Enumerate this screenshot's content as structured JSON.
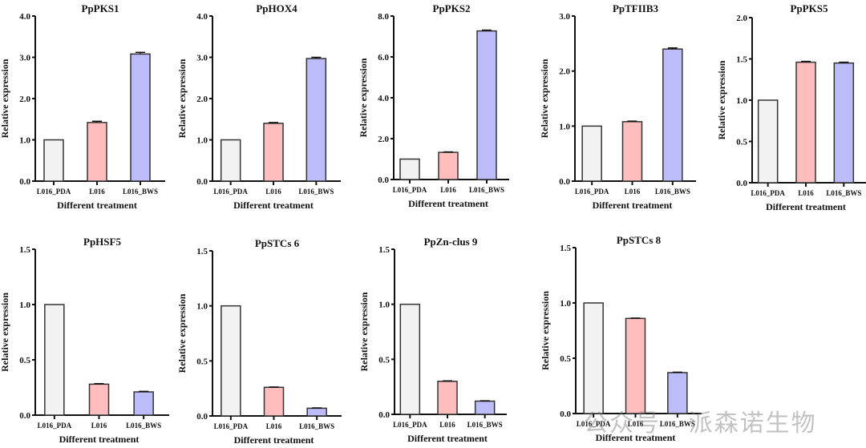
{
  "figure": {
    "watermark": "公众号 · 派森诺生物"
  },
  "chart_data": [
    {
      "type": "bar",
      "title": "PpPKS1",
      "xlabel": "Different treatment",
      "ylabel": "Relative expression",
      "categories": [
        "L016_PDA",
        "L016",
        "L016_BWS"
      ],
      "values": [
        1.0,
        1.42,
        3.08
      ],
      "errors": [
        0.0,
        0.03,
        0.04
      ],
      "ylim": [
        0,
        4.0
      ],
      "yticks": [
        "0.0",
        "1.0",
        "2.0",
        "3.0",
        "4.0"
      ],
      "colors": [
        "#f2f2f2",
        "#ffbdbd",
        "#bcbcfa"
      ],
      "grid": false
    },
    {
      "type": "bar",
      "title": "PpHOX4",
      "xlabel": "Different treatment",
      "ylabel": "Relative expression",
      "categories": [
        "L016_PDA",
        "L016",
        "L016_BWS"
      ],
      "values": [
        1.0,
        1.4,
        2.97
      ],
      "errors": [
        0.0,
        0.02,
        0.03
      ],
      "ylim": [
        0,
        4.0
      ],
      "yticks": [
        "0.0",
        "1.0",
        "2.0",
        "3.0",
        "4.0"
      ],
      "colors": [
        "#f2f2f2",
        "#ffbdbd",
        "#bcbcfa"
      ],
      "grid": false
    },
    {
      "type": "bar",
      "title": "PpPKS2",
      "xlabel": "Different treatment",
      "ylabel": "Relative expression",
      "categories": [
        "L016_PDA",
        "L016",
        "L016_BWS"
      ],
      "values": [
        1.0,
        1.33,
        7.27
      ],
      "errors": [
        0.0,
        0.02,
        0.04
      ],
      "ylim": [
        0,
        8.0
      ],
      "yticks": [
        "0.0",
        "2.0",
        "4.0",
        "6.0",
        "8.0"
      ],
      "colors": [
        "#f2f2f2",
        "#ffbdbd",
        "#bcbcfa"
      ],
      "grid": false
    },
    {
      "type": "bar",
      "title": "PpTFIIB3",
      "xlabel": "Different treatment",
      "ylabel": "Relative expression",
      "categories": [
        "L016_PDA",
        "L016",
        "L016_BWS"
      ],
      "values": [
        1.0,
        1.08,
        2.4
      ],
      "errors": [
        0.0,
        0.01,
        0.02
      ],
      "ylim": [
        0,
        3.0
      ],
      "yticks": [
        "0.0",
        "1.0",
        "2.0",
        "3.0"
      ],
      "colors": [
        "#f2f2f2",
        "#ffbdbd",
        "#bcbcfa"
      ],
      "grid": false
    },
    {
      "type": "bar",
      "title": "PpPKS5",
      "xlabel": "Different treatment",
      "ylabel": "Relative expression",
      "categories": [
        "L016_PDA",
        "L016",
        "L016_BWS"
      ],
      "values": [
        1.0,
        1.46,
        1.45
      ],
      "errors": [
        0.0,
        0.01,
        0.01
      ],
      "ylim": [
        0,
        2.0
      ],
      "yticks": [
        "0.0",
        "0.5",
        "1.0",
        "1.5",
        "2.0"
      ],
      "colors": [
        "#f2f2f2",
        "#ffbdbd",
        "#bcbcfa"
      ],
      "grid": false
    },
    {
      "type": "bar",
      "title": "PpHSF5",
      "xlabel": "Different treatment",
      "ylabel": "Relative expression",
      "categories": [
        "L016_PDA",
        "L016",
        "L016_BWS"
      ],
      "values": [
        1.0,
        0.28,
        0.21
      ],
      "errors": [
        0.0,
        0.005,
        0.005
      ],
      "ylim": [
        0,
        1.5
      ],
      "yticks": [
        "0.0",
        "0.5",
        "1.0",
        "1.5"
      ],
      "colors": [
        "#f2f2f2",
        "#ffbdbd",
        "#bcbcfa"
      ],
      "grid": false
    },
    {
      "type": "bar",
      "title": "PpSTCs 6",
      "xlabel": "Different treatment",
      "ylabel": "Relative expression",
      "categories": [
        "L016_PDA",
        "L016",
        "L016_BWS"
      ],
      "values": [
        1.0,
        0.26,
        0.07
      ],
      "errors": [
        0.0,
        0.003,
        0.003
      ],
      "ylim": [
        0,
        1.5
      ],
      "yticks": [
        "0.0",
        "0.5",
        "1.0",
        "1.5"
      ],
      "colors": [
        "#f2f2f2",
        "#ffbdbd",
        "#bcbcfa"
      ],
      "grid": false
    },
    {
      "type": "bar",
      "title": "PpZn-clus 9",
      "xlabel": "Different treatment",
      "ylabel": "Relative expression",
      "categories": [
        "L016_PDA",
        "L016",
        "L016_BWS"
      ],
      "values": [
        1.0,
        0.3,
        0.12
      ],
      "errors": [
        0.0,
        0.004,
        0.003
      ],
      "ylim": [
        0,
        1.5
      ],
      "yticks": [
        "0.0",
        "0.5",
        "1.0",
        "1.5"
      ],
      "colors": [
        "#f2f2f2",
        "#ffbdbd",
        "#bcbcfa"
      ],
      "grid": false
    },
    {
      "type": "bar",
      "title": "PpSTCs 8",
      "xlabel": "Different treatment",
      "ylabel": "Relative expression",
      "categories": [
        "L016_PDA",
        "L016",
        "L016_BWS"
      ],
      "values": [
        1.0,
        0.86,
        0.37
      ],
      "errors": [
        0.0,
        0.003,
        0.004
      ],
      "ylim": [
        0,
        1.5
      ],
      "yticks": [
        "0.0",
        "0.5",
        "1.0",
        "1.5"
      ],
      "colors": [
        "#f2f2f2",
        "#ffbdbd",
        "#bcbcfa"
      ],
      "grid": false
    }
  ]
}
